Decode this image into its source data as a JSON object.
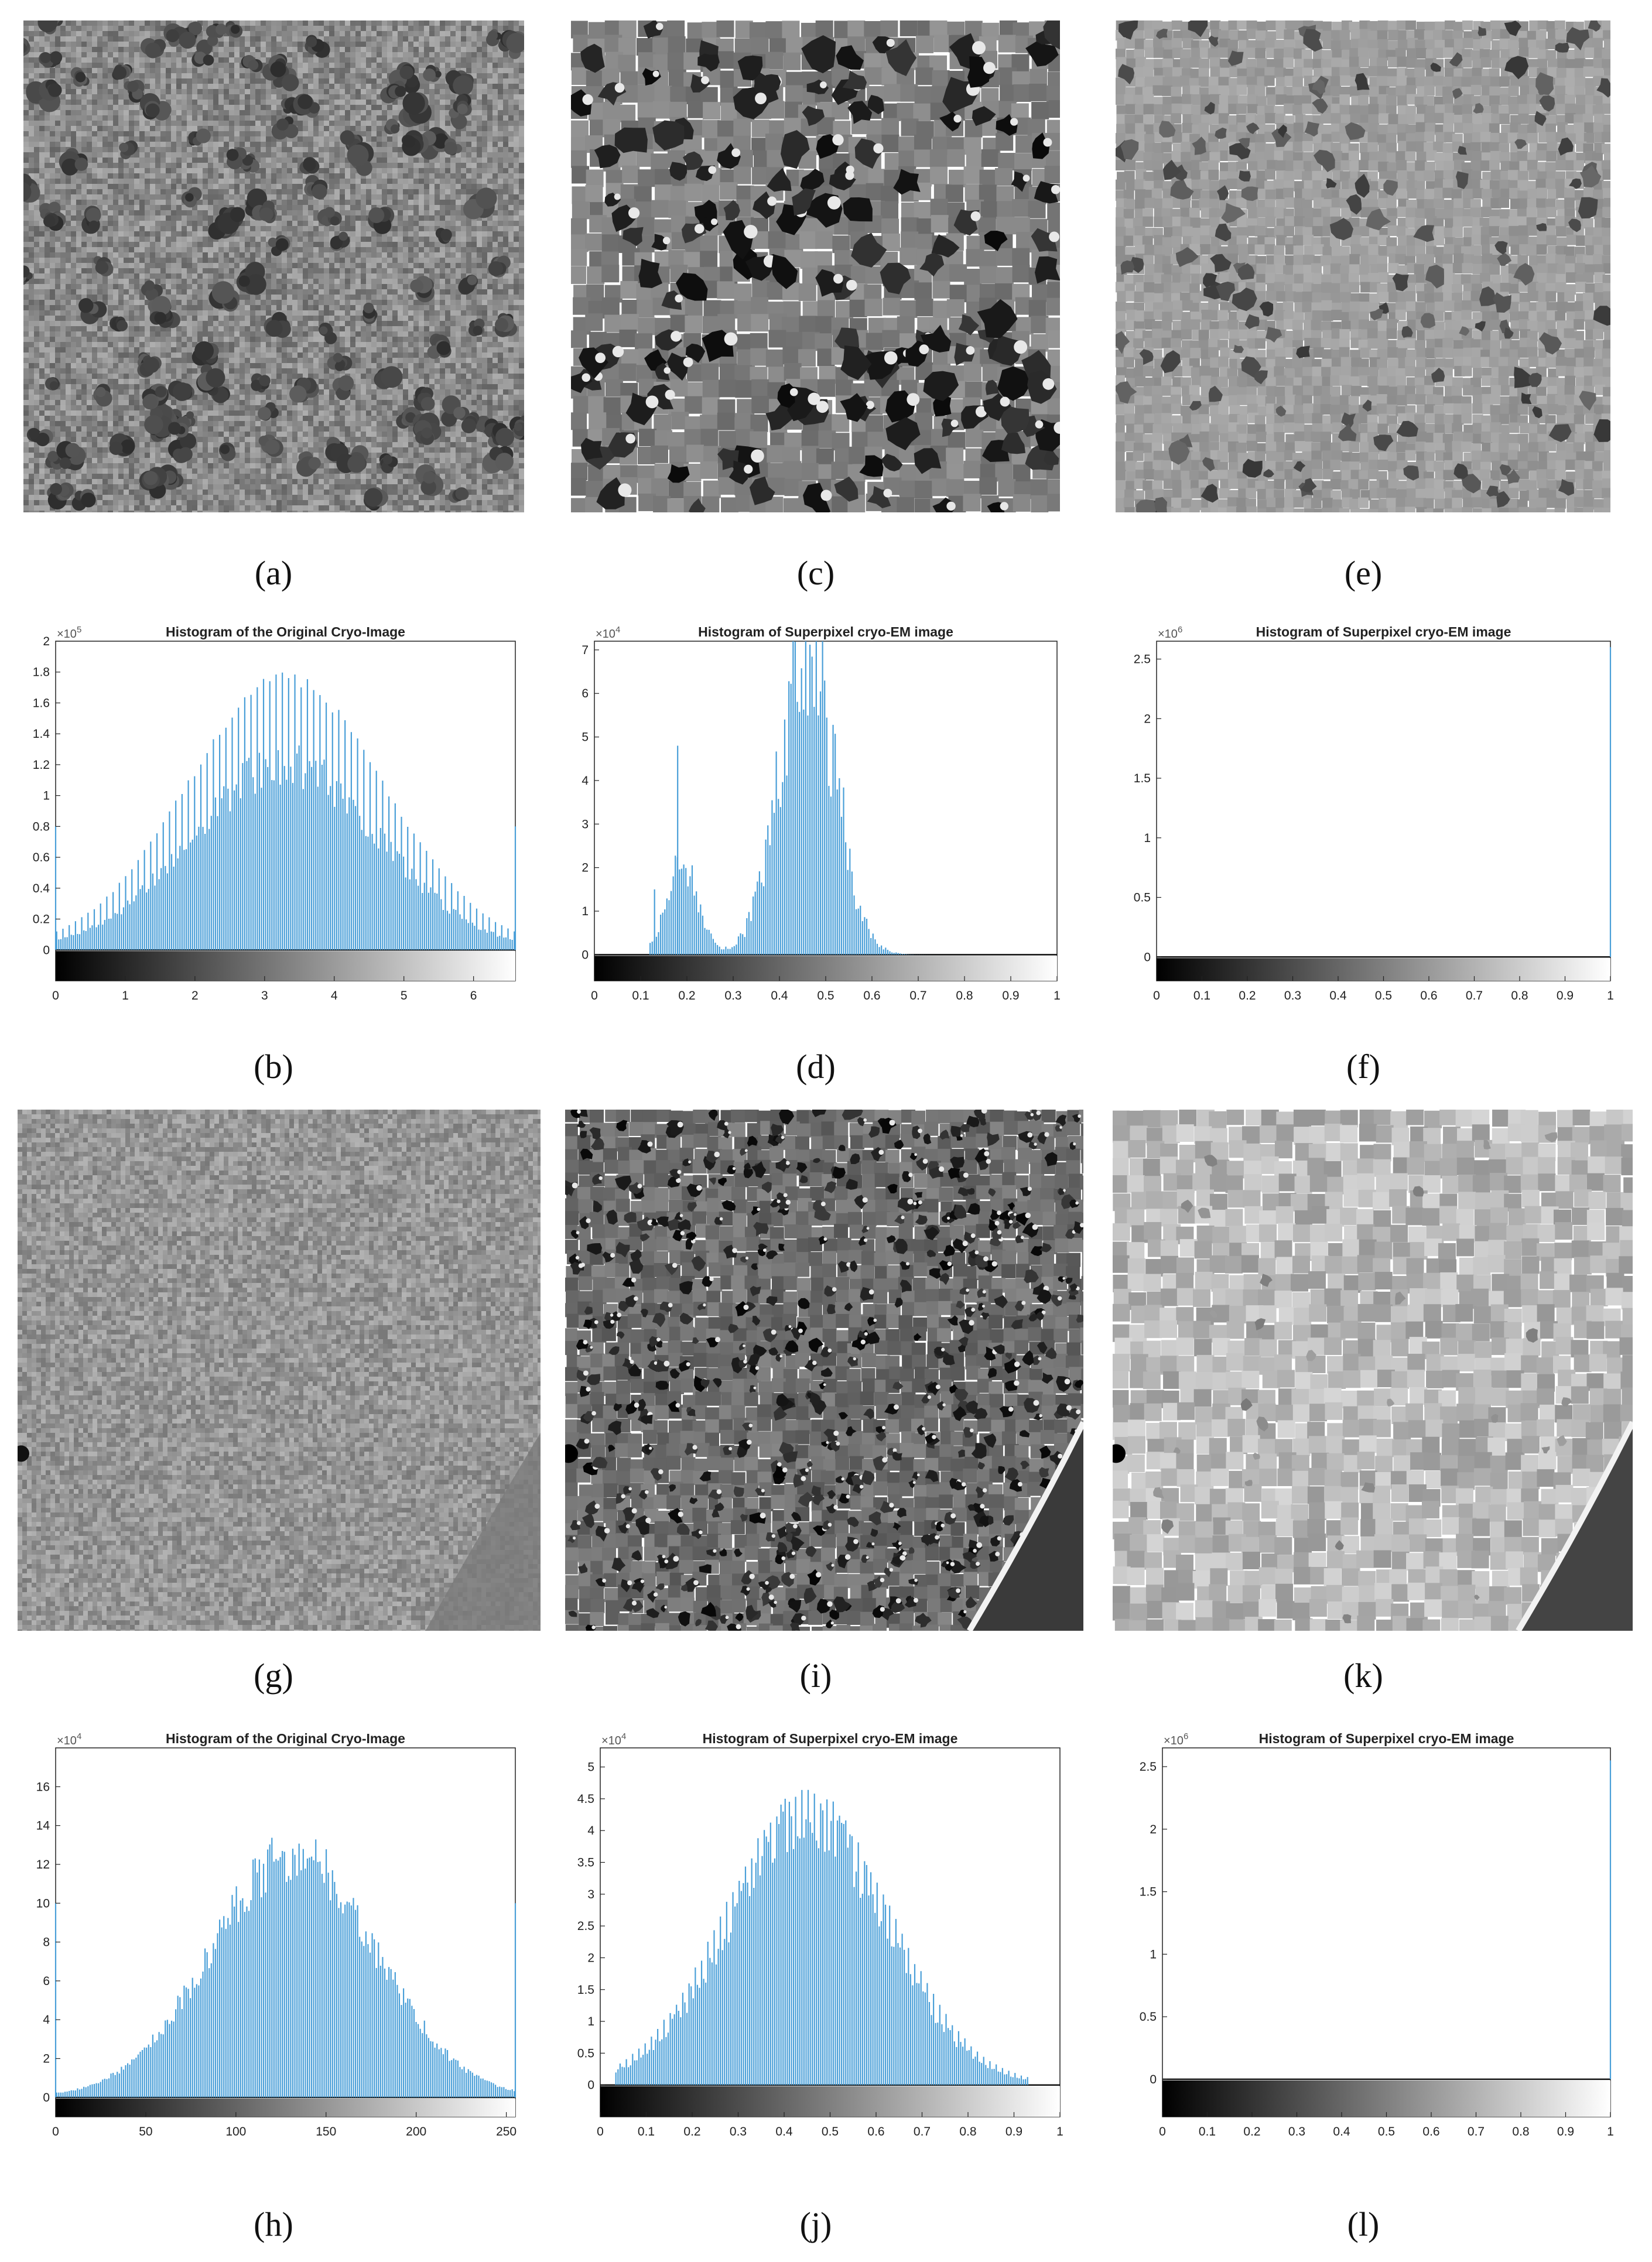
{
  "labels": {
    "a": "(a)",
    "b": "(b)",
    "c": "(c)",
    "d": "(d)",
    "e": "(e)",
    "f": "(f)",
    "g": "(g)",
    "h": "(h)",
    "i": "(i)",
    "j": "(j)",
    "k": "(k)",
    "l": "(l)"
  },
  "images": {
    "a": {
      "kind": "original-cryo-micrograph",
      "tone": "grey-noise-with-dark-particles"
    },
    "c": {
      "kind": "superpixel-cryo-em",
      "tone": "grey-cells-with-black-particles"
    },
    "e": {
      "kind": "superpixel-cryo-em",
      "tone": "light-grey-cells-with-dark-particles"
    },
    "g": {
      "kind": "original-cryo-micrograph",
      "tone": "grey-noise-with-edge"
    },
    "i": {
      "kind": "superpixel-cryo-em",
      "tone": "dark-grey-cells"
    },
    "k": {
      "kind": "superpixel-cryo-em",
      "tone": "light-grey-cells"
    }
  },
  "colors": {
    "bar": "#4a9fd8",
    "axis": "#222222",
    "background": "#ffffff"
  },
  "chart_data": [
    {
      "id": "b",
      "type": "bar",
      "title": "Histogram of the Original Cryo-Image",
      "exponent": "5",
      "xlim": [
        0,
        6.6
      ],
      "ylim": [
        -0.2,
        2.0
      ],
      "xticks": [
        "0",
        "1",
        "2",
        "3",
        "4",
        "5",
        "6"
      ],
      "xtick_values": [
        0,
        1,
        2,
        3,
        4,
        5,
        6
      ],
      "yticks": [
        "0",
        "0.2",
        "0.4",
        "0.6",
        "0.8",
        "1",
        "1.2",
        "1.4",
        "1.6",
        "1.8",
        "2"
      ],
      "ytick_values": [
        0,
        0.2,
        0.4,
        0.6,
        0.8,
        1,
        1.2,
        1.4,
        1.6,
        1.8,
        2
      ],
      "colorbar": true,
      "distribution": {
        "shape": "gaussian",
        "center": 3.3,
        "sigma": 1.35,
        "peak": 1.2,
        "spike_peak": 1.8,
        "end_spike": 0.8
      }
    },
    {
      "id": "d",
      "type": "bar",
      "title": "Histogram of Superpixel cryo-EM image",
      "exponent": "4",
      "xlim": [
        0,
        1
      ],
      "ylim": [
        -0.6,
        7.2
      ],
      "xticks": [
        "0",
        "0.1",
        "0.2",
        "0.3",
        "0.4",
        "0.5",
        "0.6",
        "0.7",
        "0.8",
        "0.9",
        "1"
      ],
      "xtick_values": [
        0,
        0.1,
        0.2,
        0.3,
        0.4,
        0.5,
        0.6,
        0.7,
        0.8,
        0.9,
        1
      ],
      "yticks": [
        "0",
        "1",
        "2",
        "3",
        "4",
        "5",
        "6",
        "7"
      ],
      "ytick_values": [
        0,
        1,
        2,
        3,
        4,
        5,
        6,
        7
      ],
      "colorbar": true,
      "distribution": {
        "shape": "bimodal",
        "modes": [
          {
            "center": 0.19,
            "sigma": 0.035,
            "peak": 2.0
          },
          {
            "center": 0.46,
            "sigma": 0.06,
            "peak": 7.0
          }
        ],
        "spikes": [
          {
            "x": 0.18,
            "y": 4.8
          },
          {
            "x": 0.13,
            "y": 1.5
          }
        ]
      }
    },
    {
      "id": "f",
      "type": "bar",
      "title": "Histogram of Superpixel cryo-EM image",
      "exponent": "6",
      "xlim": [
        0,
        1
      ],
      "ylim": [
        -0.2,
        2.65
      ],
      "xticks": [
        "0",
        "0.1",
        "0.2",
        "0.3",
        "0.4",
        "0.5",
        "0.6",
        "0.7",
        "0.8",
        "0.9",
        "1"
      ],
      "xtick_values": [
        0,
        0.1,
        0.2,
        0.3,
        0.4,
        0.5,
        0.6,
        0.7,
        0.8,
        0.9,
        1
      ],
      "yticks": [
        "0",
        "0.5",
        "1",
        "1.5",
        "2",
        "2.5"
      ],
      "ytick_values": [
        0,
        0.5,
        1,
        1.5,
        2,
        2.5
      ],
      "colorbar": true,
      "distribution": {
        "shape": "single-spike",
        "x": 1.0,
        "y": 2.6
      }
    },
    {
      "id": "h",
      "type": "bar",
      "title": "Histogram of the Original Cryo-Image",
      "exponent": "4",
      "xlim": [
        0,
        255
      ],
      "ylim": [
        -1,
        18
      ],
      "xticks": [
        "0",
        "50",
        "100",
        "150",
        "200",
        "250"
      ],
      "xtick_values": [
        0,
        50,
        100,
        150,
        200,
        250
      ],
      "yticks": [
        "0",
        "2",
        "4",
        "6",
        "8",
        "10",
        "12",
        "14",
        "16"
      ],
      "ytick_values": [
        0,
        2,
        4,
        6,
        8,
        10,
        12,
        14,
        16
      ],
      "colorbar": true,
      "distribution": {
        "shape": "gaussian",
        "center": 132,
        "sigma": 46,
        "peak": 12.4,
        "end_spike": 10
      }
    },
    {
      "id": "j",
      "type": "bar",
      "title": "Histogram of Superpixel cryo-EM image",
      "exponent": "4",
      "xlim": [
        0,
        1
      ],
      "ylim": [
        -0.5,
        5.3
      ],
      "xticks": [
        "0",
        "0.1",
        "0.2",
        "0.3",
        "0.4",
        "0.5",
        "0.6",
        "0.7",
        "0.8",
        "0.9",
        "1"
      ],
      "xtick_values": [
        0,
        0.1,
        0.2,
        0.3,
        0.4,
        0.5,
        0.6,
        0.7,
        0.8,
        0.9,
        1
      ],
      "yticks": [
        "0",
        "0.5",
        "1",
        "1.5",
        "2",
        "2.5",
        "3",
        "3.5",
        "4",
        "4.5",
        "5"
      ],
      "ytick_values": [
        0,
        0.5,
        1,
        1.5,
        2,
        2.5,
        3,
        3.5,
        4,
        4.5,
        5
      ],
      "colorbar": true,
      "distribution": {
        "shape": "gaussian",
        "center": 0.45,
        "sigma": 0.17,
        "peak": 4.2,
        "spike_peak": 4.7,
        "min_x": 0.03,
        "max_x": 0.93
      }
    },
    {
      "id": "l",
      "type": "bar",
      "title": "Histogram of Superpixel cryo-EM image",
      "exponent": "6",
      "xlim": [
        0,
        1
      ],
      "ylim": [
        -0.3,
        2.65
      ],
      "xticks": [
        "0",
        "0.1",
        "0.2",
        "0.3",
        "0.4",
        "0.5",
        "0.6",
        "0.7",
        "0.8",
        "0.9",
        "1"
      ],
      "xtick_values": [
        0,
        0.1,
        0.2,
        0.3,
        0.4,
        0.5,
        0.6,
        0.7,
        0.8,
        0.9,
        1
      ],
      "yticks": [
        "0",
        "0.5",
        "1",
        "1.5",
        "2",
        "2.5"
      ],
      "ytick_values": [
        0,
        0.5,
        1,
        1.5,
        2,
        2.5
      ],
      "colorbar": true,
      "distribution": {
        "shape": "single-spike",
        "x": 1.0,
        "y": 2.55
      }
    }
  ]
}
